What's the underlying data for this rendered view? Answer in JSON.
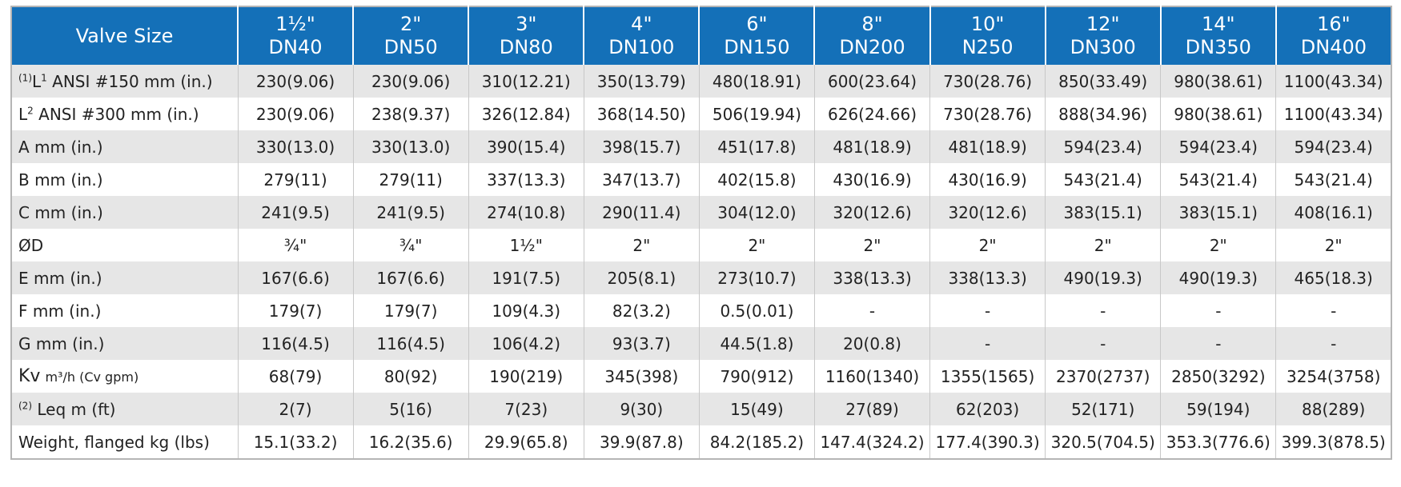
{
  "table": {
    "corner": "Valve Size",
    "columns": [
      {
        "size": "1½\"",
        "dn": "DN40"
      },
      {
        "size": "2\"",
        "dn": "DN50"
      },
      {
        "size": "3\"",
        "dn": "DN80"
      },
      {
        "size": "4\"",
        "dn": "DN100"
      },
      {
        "size": "6\"",
        "dn": "DN150"
      },
      {
        "size": "8\"",
        "dn": "DN200"
      },
      {
        "size": "10\"",
        "dn": "N250"
      },
      {
        "size": "12\"",
        "dn": "DN300"
      },
      {
        "size": "14\"",
        "dn": "DN350"
      },
      {
        "size": "16\"",
        "dn": "DN400"
      }
    ],
    "rows": [
      {
        "label": [
          {
            "sup": "(1)"
          },
          {
            "text": "L"
          },
          {
            "sup": "1"
          },
          {
            "text": " ANSI #150 mm (in.)"
          }
        ],
        "cells": [
          "230(9.06)",
          "230(9.06)",
          "310(12.21)",
          "350(13.79)",
          "480(18.91)",
          "600(23.64)",
          "730(28.76)",
          "850(33.49)",
          "980(38.61)",
          "1100(43.34)"
        ]
      },
      {
        "label": [
          {
            "text": "L"
          },
          {
            "sup": "2"
          },
          {
            "text": " ANSI #300 mm (in.)"
          }
        ],
        "cells": [
          "230(9.06)",
          "238(9.37)",
          "326(12.84)",
          "368(14.50)",
          "506(19.94)",
          "626(24.66)",
          "730(28.76)",
          "888(34.96)",
          "980(38.61)",
          "1100(43.34)"
        ]
      },
      {
        "label": [
          {
            "text": "A mm (in.)"
          }
        ],
        "cells": [
          "330(13.0)",
          "330(13.0)",
          "390(15.4)",
          "398(15.7)",
          "451(17.8)",
          "481(18.9)",
          "481(18.9)",
          "594(23.4)",
          "594(23.4)",
          "594(23.4)"
        ]
      },
      {
        "label": [
          {
            "text": "B mm (in.)"
          }
        ],
        "cells": [
          "279(11)",
          "279(11)",
          "337(13.3)",
          "347(13.7)",
          "402(15.8)",
          "430(16.9)",
          "430(16.9)",
          "543(21.4)",
          "543(21.4)",
          "543(21.4)"
        ]
      },
      {
        "label": [
          {
            "text": "C mm (in.)"
          }
        ],
        "cells": [
          "241(9.5)",
          "241(9.5)",
          "274(10.8)",
          "290(11.4)",
          "304(12.0)",
          "320(12.6)",
          "320(12.6)",
          "383(15.1)",
          "383(15.1)",
          "408(16.1)"
        ]
      },
      {
        "label": [
          {
            "text": "ØD"
          }
        ],
        "cells": [
          "¾\"",
          "¾\"",
          "1½\"",
          "2\"",
          "2\"",
          "2\"",
          "2\"",
          "2\"",
          "2\"",
          "2\""
        ]
      },
      {
        "label": [
          {
            "text": "E mm (in.)"
          }
        ],
        "cells": [
          "167(6.6)",
          "167(6.6)",
          "191(7.5)",
          "205(8.1)",
          "273(10.7)",
          "338(13.3)",
          "338(13.3)",
          "490(19.3)",
          "490(19.3)",
          "465(18.3)"
        ]
      },
      {
        "label": [
          {
            "text": "F mm (in.)"
          }
        ],
        "cells": [
          "179(7)",
          "179(7)",
          "109(4.3)",
          "82(3.2)",
          "0.5(0.01)",
          "-",
          "-",
          "-",
          "-",
          "-"
        ]
      },
      {
        "label": [
          {
            "text": "G mm (in.)"
          }
        ],
        "cells": [
          "116(4.5)",
          "116(4.5)",
          "106(4.2)",
          "93(3.7)",
          "44.5(1.8)",
          "20(0.8)",
          "-",
          "-",
          "-",
          "-"
        ]
      },
      {
        "label": [
          {
            "text": "Kv"
          },
          {
            "small": "m³/h (Cv gpm)"
          }
        ],
        "cells": [
          "68(79)",
          "80(92)",
          "190(219)",
          "345(398)",
          "790(912)",
          "1160(1340)",
          "1355(1565)",
          "2370(2737)",
          "2850(3292)",
          "3254(3758)"
        ]
      },
      {
        "label": [
          {
            "sup": "(2)"
          },
          {
            "text": " Leq m (ft)"
          }
        ],
        "cells": [
          "2(7)",
          "5(16)",
          "7(23)",
          "9(30)",
          "15(49)",
          "27(89)",
          "62(203)",
          "52(171)",
          "59(194)",
          "88(289)"
        ]
      },
      {
        "label": [
          {
            "text": "Weight, flanged kg (lbs)"
          }
        ],
        "cells": [
          "15.1(33.2)",
          "16.2(35.6)",
          "29.9(65.8)",
          "39.9(87.8)",
          "84.2(185.2)",
          "147.4(324.2)",
          "177.4(390.3)",
          "320.5(704.5)",
          "353.3(776.6)",
          "399.3(878.5)"
        ]
      }
    ]
  }
}
